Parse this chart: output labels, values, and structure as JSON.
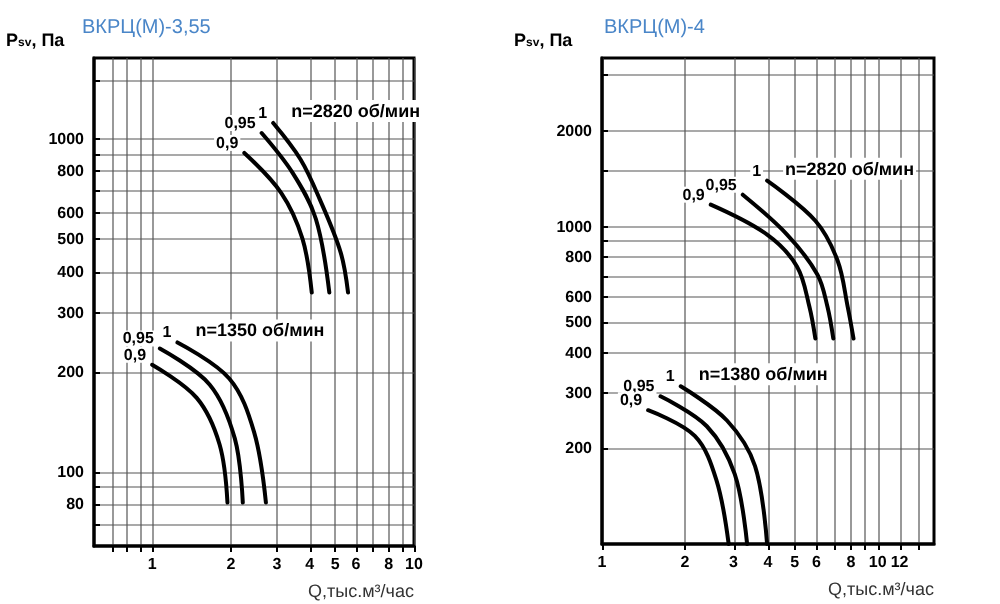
{
  "chart_data": [
    {
      "type": "line",
      "title": "ВКРЦ(М)-3,55",
      "xlabel": "Q,тыс.м³/час",
      "ylabel": "P$_{sv}$, Па",
      "log": "xy",
      "grid": true,
      "legend": false,
      "marker": "none",
      "line_style": "solid",
      "xlim": [
        0.6,
        10
      ],
      "ylim": [
        60,
        1750
      ],
      "xticks": [
        {
          "value": 0.7,
          "label": null
        },
        {
          "value": 0.8,
          "label": null
        },
        {
          "value": 0.9,
          "label": null
        },
        1,
        2,
        3,
        4,
        5,
        6,
        {
          "value": 7,
          "label": null
        },
        8,
        {
          "value": 9,
          "label": null
        },
        10
      ],
      "yticks": [
        {
          "value": 70,
          "label": null
        },
        80,
        {
          "value": 90,
          "label": null
        },
        100,
        200,
        300,
        400,
        500,
        600,
        {
          "value": 700,
          "label": null
        },
        800,
        {
          "value": 900,
          "label": null
        },
        1000,
        {
          "value": 1500,
          "label": null
        }
      ],
      "series": [
        {
          "name": "1",
          "color": "#000000",
          "x": [
            2.9,
            3.68,
            4.36,
            5.25,
            5.6
          ],
          "values": [
            1117,
            871,
            661,
            456,
            346
          ]
        },
        {
          "name": "0,95",
          "color": "#000000",
          "x": [
            2.62,
            3.44,
            4.22,
            4.75
          ],
          "values": [
            1042,
            791,
            575,
            346
          ]
        },
        {
          "name": "0,9",
          "color": "#000000",
          "x": [
            2.25,
            3.11,
            3.75,
            4.07
          ],
          "values": [
            908,
            689,
            502,
            346
          ]
        },
        {
          "name": "1",
          "color": "#000000",
          "x": [
            1.25,
            1.97,
            2.45,
            2.72
          ],
          "values": [
            245,
            191,
            132,
            81
          ]
        },
        {
          "name": "0,95",
          "color": "#000000",
          "x": [
            1.07,
            1.66,
            2.07,
            2.22
          ],
          "values": [
            235,
            183,
            126,
            81
          ]
        },
        {
          "name": "0,9",
          "color": "#000000",
          "x": [
            1.0,
            1.48,
            1.81,
            1.94
          ],
          "values": [
            210,
            167,
            121,
            81
          ]
        }
      ],
      "annotations": [
        {
          "text": "n=2820 об/мин",
          "x": 2.9,
          "y": 1117
        },
        {
          "text": "n=1350 об/мин",
          "x": 1.25,
          "y": 245
        }
      ]
    },
    {
      "type": "line",
      "title": "ВКРЦ(М)-4",
      "xlabel": "Q,тыс.м³/час",
      "ylabel": "P$_{sv}$, Па",
      "log": "xy",
      "grid": true,
      "legend": false,
      "marker": "none",
      "line_style": "solid",
      "xlim": [
        1,
        16
      ],
      "ylim": [
        100,
        3400
      ],
      "xticks": [
        1,
        2,
        3,
        4,
        5,
        6,
        {
          "value": 7,
          "label": null
        },
        8,
        {
          "value": 9,
          "label": null
        },
        10,
        12,
        {
          "value": 14,
          "label": null
        }
      ],
      "yticks": [
        200,
        300,
        400,
        500,
        600,
        {
          "value": 700,
          "label": null
        },
        800,
        {
          "value": 900,
          "label": null
        },
        1000,
        {
          "value": 1500,
          "label": null
        },
        2000,
        {
          "value": 3000,
          "label": null
        }
      ],
      "series": [
        {
          "name": "1",
          "color": "#000000",
          "x": [
            3.97,
            5.94,
            7.15,
            7.78,
            8.17
          ],
          "values": [
            1396,
            1044,
            782,
            560,
            444
          ]
        },
        {
          "name": "0,95",
          "color": "#000000",
          "x": [
            3.24,
            4.69,
            6.04,
            6.57,
            6.9
          ],
          "values": [
            1261,
            944,
            707,
            560,
            444
          ]
        },
        {
          "name": "0,9",
          "color": "#000000",
          "x": [
            2.48,
            3.97,
            5.1,
            5.65,
            5.94
          ],
          "values": [
            1173,
            944,
            748,
            560,
            444
          ]
        },
        {
          "name": "1",
          "color": "#000000",
          "x": [
            1.93,
            2.84,
            3.59,
            3.97
          ],
          "values": [
            314,
            245,
            176,
            100
          ]
        },
        {
          "name": "0,95",
          "color": "#000000",
          "x": [
            1.63,
            2.4,
            3.03,
            3.36
          ],
          "values": [
            292,
            235,
            166,
            100
          ]
        },
        {
          "name": "0,9",
          "color": "#000000",
          "x": [
            1.47,
            2.17,
            2.6,
            2.88
          ],
          "values": [
            264,
            219,
            159,
            100
          ]
        }
      ],
      "annotations": [
        {
          "text": "n=2820 об/мин",
          "x": 3.97,
          "y": 1396
        },
        {
          "text": "n=1380 об/мин",
          "x": 1.93,
          "y": 314
        }
      ]
    }
  ]
}
